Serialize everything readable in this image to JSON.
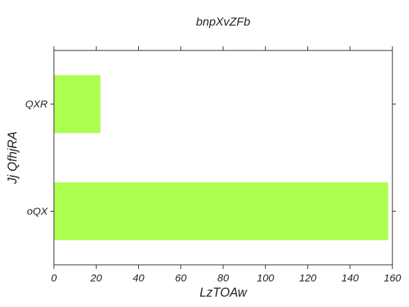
{
  "chart_data": {
    "type": "bar",
    "orientation": "horizontal",
    "title": "bnpXvZFb",
    "xlabel": "LzTOAw",
    "ylabel": "Jj QfhjRA",
    "categories": [
      "oQX",
      "QXR"
    ],
    "values": [
      158,
      22
    ],
    "xlim": [
      0,
      160
    ],
    "xticks": [
      0,
      20,
      40,
      60,
      80,
      100,
      120,
      140,
      160
    ],
    "grid": false,
    "bar_color": "#adff4f"
  }
}
